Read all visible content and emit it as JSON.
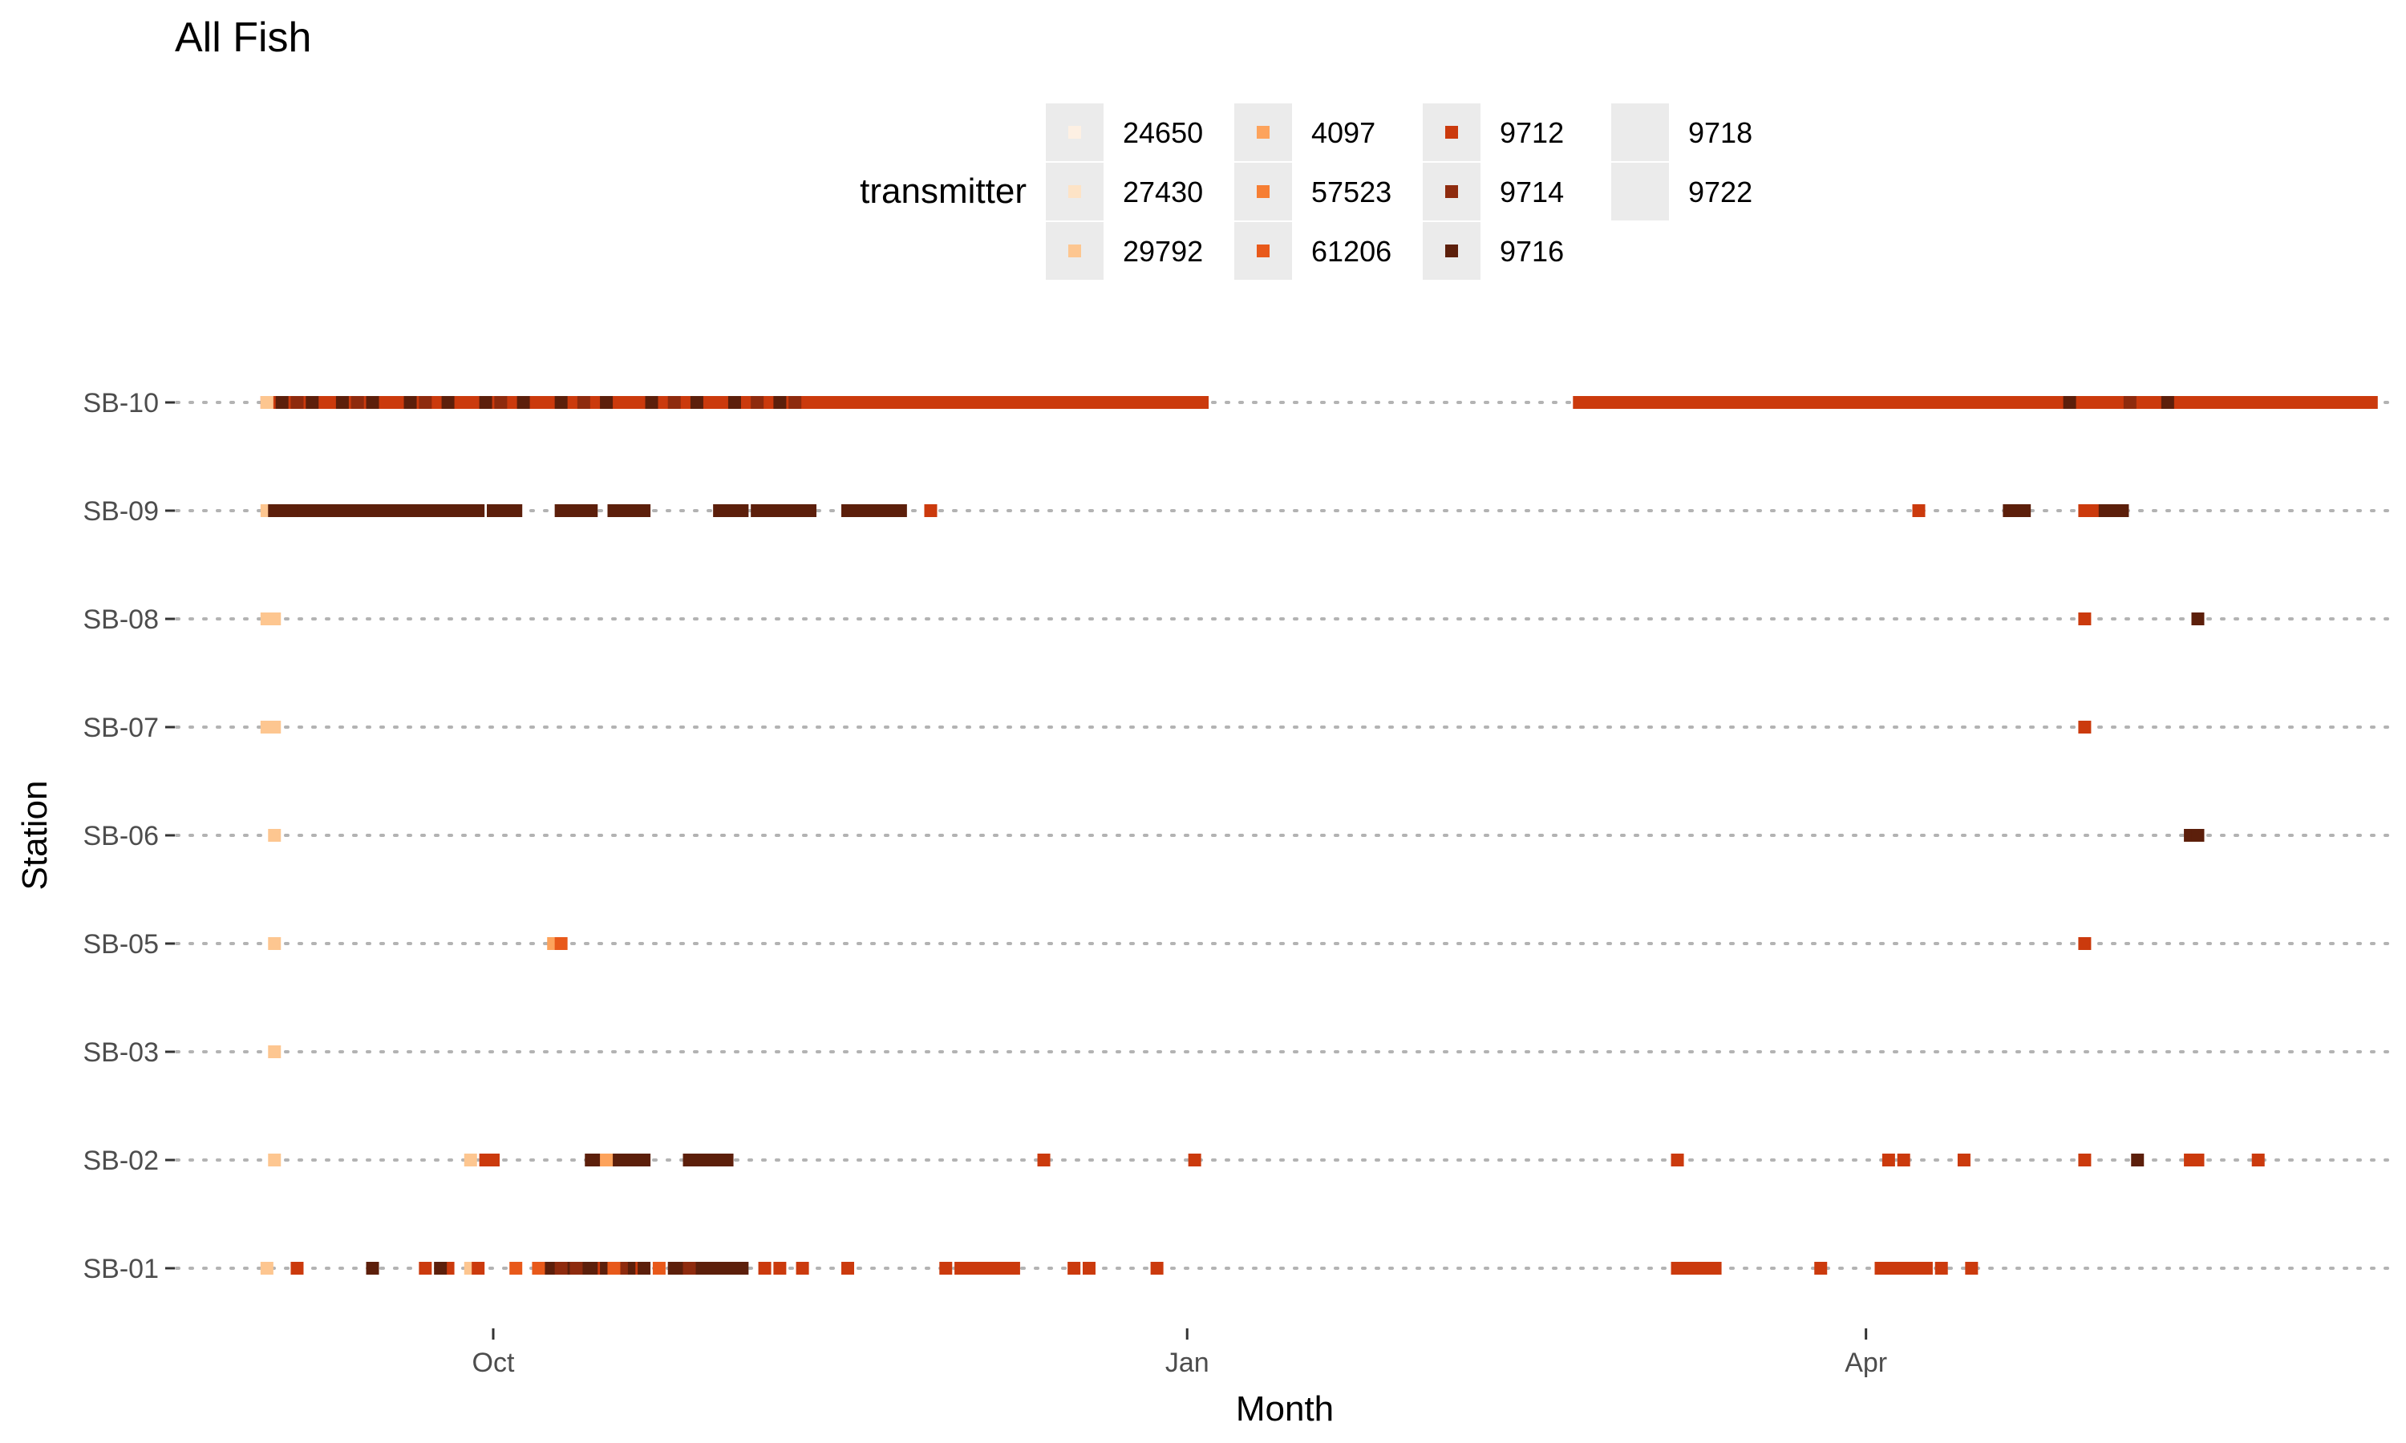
{
  "chart_data": {
    "type": "scatter",
    "title": "All Fish",
    "xlabel": "Month",
    "ylabel": "Station",
    "x_ticks": [
      "Oct",
      "Jan",
      "Apr"
    ],
    "xlim": [
      "2021-08-20",
      "2022-06-10"
    ],
    "stations": [
      "SB-10",
      "SB-09",
      "SB-08",
      "SB-07",
      "SB-06",
      "SB-05",
      "SB-03",
      "SB-02",
      "SB-01"
    ],
    "grid": "dotted horizontal lines per station",
    "legend": {
      "title": "transmitter",
      "position": "top",
      "items": [
        {
          "label": "24650",
          "color": "#fdf0e3"
        },
        {
          "label": "27430",
          "color": "#fde3c6"
        },
        {
          "label": "29792",
          "color": "#fdc690"
        },
        {
          "label": "4097",
          "color": "#fda35c"
        },
        {
          "label": "57523",
          "color": "#f67e33"
        },
        {
          "label": "61206",
          "color": "#e8591a"
        },
        {
          "label": "9712",
          "color": "#cb3a0d"
        },
        {
          "label": "9714",
          "color": "#8e2b0e"
        },
        {
          "label": "9716",
          "color": "#5c1f0b"
        },
        {
          "label": "9718",
          "color": ""
        },
        {
          "label": "9722",
          "color": ""
        }
      ]
    },
    "series": [
      {
        "station": "SB-10",
        "transmitter": "9712",
        "ranges": [
          [
            "2021-09-01",
            "2022-01-03"
          ],
          [
            "2022-02-22",
            "2022-06-07"
          ]
        ]
      },
      {
        "station": "SB-10",
        "transmitter": "9716",
        "points": [
          "2021-09-03",
          "2021-09-07",
          "2021-09-11",
          "2021-09-15",
          "2021-09-20",
          "2021-09-25",
          "2021-09-30",
          "2021-10-05",
          "2021-10-10",
          "2021-10-16",
          "2021-10-22",
          "2021-10-28",
          "2021-11-02",
          "2021-11-08",
          "2022-04-28",
          "2022-05-11"
        ]
      },
      {
        "station": "SB-10",
        "transmitter": "9714",
        "points": [
          "2021-09-05",
          "2021-09-13",
          "2021-09-22",
          "2021-10-02",
          "2021-10-13",
          "2021-10-25",
          "2021-11-05",
          "2021-11-10",
          "2022-05-06"
        ]
      },
      {
        "station": "SB-10",
        "transmitter": "29792",
        "points": [
          "2021-09-01"
        ]
      },
      {
        "station": "SB-09",
        "transmitter": "29792",
        "points": [
          "2021-09-01"
        ]
      },
      {
        "station": "SB-09",
        "transmitter": "9716",
        "ranges": [
          [
            "2021-09-02",
            "2021-09-05"
          ],
          [
            "2021-09-06",
            "2021-09-29"
          ],
          [
            "2021-10-01",
            "2021-10-04"
          ],
          [
            "2021-10-10",
            "2021-10-14"
          ],
          [
            "2021-10-17",
            "2021-10-21"
          ],
          [
            "2021-10-31",
            "2021-11-03"
          ],
          [
            "2021-11-05",
            "2021-11-12"
          ],
          [
            "2021-11-17",
            "2021-11-24"
          ],
          [
            "2022-04-20",
            "2022-04-22"
          ],
          [
            "2022-05-02",
            "2022-05-05"
          ]
        ]
      },
      {
        "station": "SB-09",
        "transmitter": "9712",
        "points": [
          "2021-11-28",
          "2022-04-08",
          "2022-04-30",
          "2022-05-01"
        ]
      },
      {
        "station": "SB-08",
        "transmitter": "29792",
        "points": [
          "2021-09-01",
          "2021-09-02"
        ]
      },
      {
        "station": "SB-08",
        "transmitter": "9712",
        "points": [
          "2022-04-30"
        ]
      },
      {
        "station": "SB-08",
        "transmitter": "9716",
        "points": [
          "2022-05-15"
        ]
      },
      {
        "station": "SB-07",
        "transmitter": "29792",
        "points": [
          "2021-09-01",
          "2021-09-02"
        ]
      },
      {
        "station": "SB-07",
        "transmitter": "9712",
        "points": [
          "2022-04-30"
        ]
      },
      {
        "station": "SB-06",
        "transmitter": "29792",
        "points": [
          "2021-09-02"
        ]
      },
      {
        "station": "SB-06",
        "transmitter": "9716",
        "points": [
          "2022-05-14",
          "2022-05-15"
        ]
      },
      {
        "station": "SB-05",
        "transmitter": "29792",
        "points": [
          "2021-09-02"
        ]
      },
      {
        "station": "SB-05",
        "transmitter": "4097",
        "points": [
          "2021-10-09"
        ]
      },
      {
        "station": "SB-05",
        "transmitter": "61206",
        "points": [
          "2021-10-10"
        ]
      },
      {
        "station": "SB-05",
        "transmitter": "9712",
        "points": [
          "2022-04-30"
        ]
      },
      {
        "station": "SB-03",
        "transmitter": "29792",
        "points": [
          "2021-09-02"
        ]
      },
      {
        "station": "SB-02",
        "transmitter": "29792",
        "points": [
          "2021-09-02",
          "2021-09-28"
        ]
      },
      {
        "station": "SB-02",
        "transmitter": "9712",
        "points": [
          "2021-09-30",
          "2021-10-01",
          "2021-10-15",
          "2021-12-13",
          "2022-01-02",
          "2022-03-07",
          "2022-04-04",
          "2022-04-06",
          "2022-04-14",
          "2022-04-30",
          "2022-05-14",
          "2022-05-15",
          "2022-05-23"
        ]
      },
      {
        "station": "SB-02",
        "transmitter": "9716",
        "ranges": [
          [
            "2021-10-14",
            "2021-10-21"
          ],
          [
            "2021-10-27",
            "2021-11-01"
          ]
        ],
        "points": [
          "2022-05-07"
        ]
      },
      {
        "station": "SB-02",
        "transmitter": "4097",
        "points": [
          "2021-10-16"
        ]
      },
      {
        "station": "SB-01",
        "transmitter": "29792",
        "points": [
          "2021-09-01",
          "2021-09-28"
        ]
      },
      {
        "station": "SB-01",
        "transmitter": "9712",
        "ranges": [
          [
            "2021-10-31",
            "2021-11-02"
          ],
          [
            "2021-12-02",
            "2021-12-09"
          ],
          [
            "2022-03-07",
            "2022-03-12"
          ],
          [
            "2022-04-03",
            "2022-04-09"
          ]
        ],
        "points": [
          "2021-09-05",
          "2021-09-22",
          "2021-09-25",
          "2021-09-29",
          "2021-10-12",
          "2021-10-15",
          "2021-10-20",
          "2021-11-06",
          "2021-11-08",
          "2021-11-11",
          "2021-11-17",
          "2021-11-30",
          "2021-12-17",
          "2021-12-19",
          "2021-12-28",
          "2022-03-26",
          "2022-04-11",
          "2022-04-15"
        ]
      },
      {
        "station": "SB-01",
        "transmitter": "9716",
        "ranges": [
          [
            "2021-10-08",
            "2021-10-14"
          ],
          [
            "2021-10-25",
            "2021-11-03"
          ]
        ],
        "points": [
          "2021-09-15",
          "2021-09-24",
          "2021-10-16",
          "2021-10-19",
          "2021-10-21"
        ]
      },
      {
        "station": "SB-01",
        "transmitter": "9714",
        "points": [
          "2021-10-10",
          "2021-10-12",
          "2021-10-18",
          "2021-10-27"
        ]
      },
      {
        "station": "SB-01",
        "transmitter": "61206",
        "points": [
          "2021-10-04",
          "2021-10-07",
          "2021-10-17",
          "2021-10-23"
        ]
      }
    ]
  }
}
